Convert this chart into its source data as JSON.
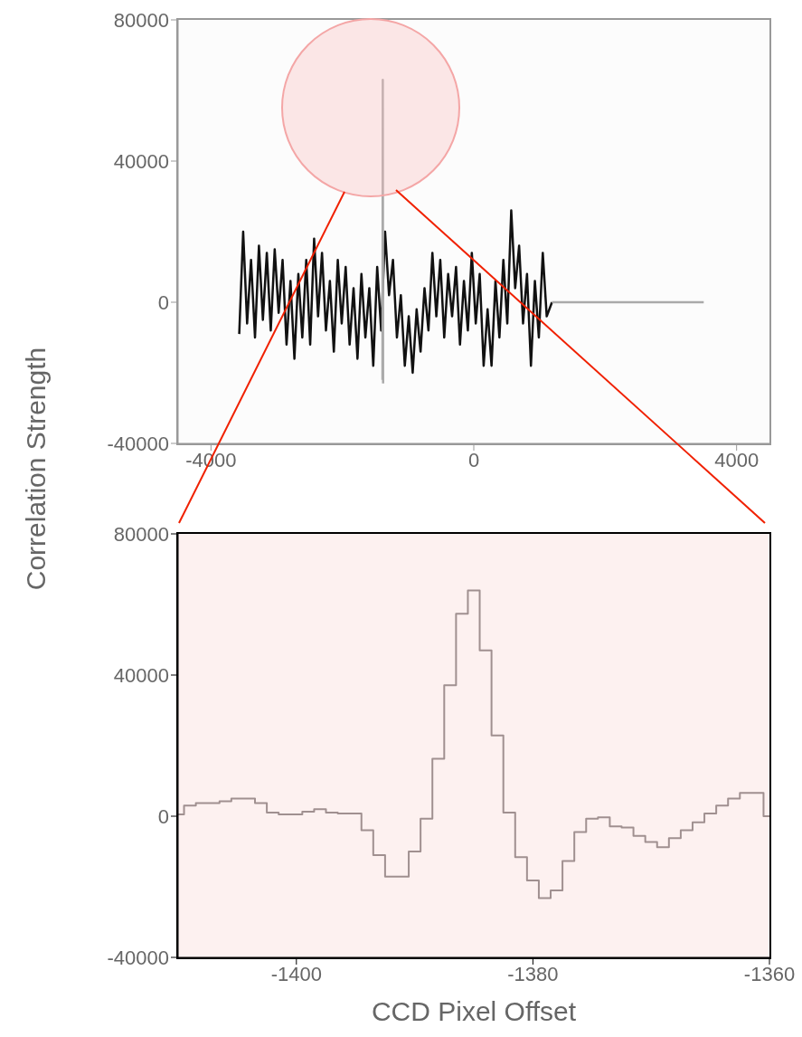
{
  "chart_data": [
    {
      "type": "line",
      "ylabel": "Correlation Strength",
      "xlim": [
        -4500,
        4500
      ],
      "xticks": [
        -4000,
        0,
        4000
      ],
      "ylim": [
        -40000,
        80000
      ],
      "yticks": [
        -40000,
        0,
        40000,
        80000
      ],
      "marker": "none",
      "series": [
        {
          "color": "#111111",
          "x": [
            -3570,
            -3510,
            -3450,
            -3390,
            -3330,
            -3270,
            -3210,
            -3150,
            -3090,
            -3030,
            -2970,
            -2910,
            -2850,
            -2790,
            -2730,
            -2670,
            -2610,
            -2550,
            -2490,
            -2430,
            -2370,
            -2310,
            -2250,
            -2190,
            -2130,
            -2070,
            -2010,
            -1950,
            -1890,
            -1830,
            -1770,
            -1710,
            -1650,
            -1590,
            -1530,
            -1470,
            -1410,
            -1350,
            -1290,
            -1230,
            -1170,
            -1110,
            -1050,
            -990,
            -930,
            -870,
            -810,
            -750,
            -690,
            -630,
            -570,
            -510,
            -450,
            -390,
            -330,
            -270,
            -210,
            -150,
            -90,
            -30,
            30,
            90,
            150,
            210,
            270,
            330,
            390,
            450,
            510,
            570,
            630,
            690,
            750,
            810,
            870,
            930,
            990,
            1050,
            1110,
            1190
          ],
          "values": [
            -9000,
            20000,
            -6000,
            12000,
            -10000,
            16000,
            -5000,
            14000,
            -8000,
            15000,
            -3000,
            12000,
            -12000,
            6000,
            -16000,
            8000,
            -10000,
            12000,
            -12000,
            18000,
            -4000,
            14000,
            -8000,
            6000,
            -14000,
            12000,
            -6000,
            10000,
            -12000,
            4000,
            -16000,
            8000,
            -10000,
            4000,
            -18000,
            10000,
            -8000,
            20000,
            2000,
            12000,
            -10000,
            2000,
            -18000,
            -4000,
            -20000,
            -2000,
            -14000,
            4000,
            -8000,
            14000,
            -4000,
            12000,
            -10000,
            8000,
            -4000,
            10000,
            -12000,
            6000,
            -8000,
            14000,
            -6000,
            8000,
            -18000,
            -2000,
            -18000,
            6000,
            -10000,
            12000,
            -6000,
            26000,
            4000,
            16000,
            -6000,
            8000,
            -18000,
            6000,
            -10000,
            14000,
            -4000,
            0
          ]
        },
        {
          "color": "#aaaaaa",
          "x": [
            -1390,
            -1385,
            -1380
          ],
          "values": [
            -22000,
            63000,
            -23000
          ]
        },
        {
          "color": "#aaaaaa",
          "x": [
            1190,
            3500
          ],
          "values": [
            0,
            0
          ]
        }
      ]
    },
    {
      "type": "step",
      "xlabel": "CCD Pixel Offset",
      "xlim": [
        -1410,
        -1360
      ],
      "xticks": [
        -1400,
        -1380,
        -1360
      ],
      "ylim": [
        -40000,
        80000
      ],
      "yticks": [
        -40000,
        0,
        40000,
        80000
      ],
      "marker": "none",
      "series": [
        {
          "color": "#a09090",
          "x": [
            -1410,
            -1409,
            -1408,
            -1407,
            -1406,
            -1405,
            -1404,
            -1403,
            -1402,
            -1401,
            -1400,
            -1399,
            -1398,
            -1397,
            -1396,
            -1395,
            -1394,
            -1393,
            -1392,
            -1391,
            -1390,
            -1389,
            -1388,
            -1387,
            -1386,
            -1385,
            -1384,
            -1383,
            -1382,
            -1381,
            -1380,
            -1379,
            -1378,
            -1377,
            -1376,
            -1375,
            -1374,
            -1373,
            -1372,
            -1371,
            -1370,
            -1369,
            -1368,
            -1367,
            -1366,
            -1365,
            -1364,
            -1363,
            -1362,
            -1361,
            -1360
          ],
          "values": [
            500,
            3000,
            3700,
            3700,
            4200,
            5000,
            5000,
            3700,
            1000,
            500,
            500,
            1300,
            2000,
            1000,
            800,
            800,
            -4000,
            -11000,
            -17100,
            -17100,
            -10000,
            -700,
            16300,
            37100,
            57400,
            64000,
            47000,
            22900,
            1000,
            -11600,
            -18200,
            -23200,
            -21000,
            -12700,
            -4500,
            -700,
            -300,
            -2900,
            -3200,
            -5600,
            -7300,
            -8800,
            -6200,
            -4000,
            -1700,
            800,
            3000,
            5000,
            6600,
            6600,
            0
          ]
        }
      ]
    }
  ]
}
